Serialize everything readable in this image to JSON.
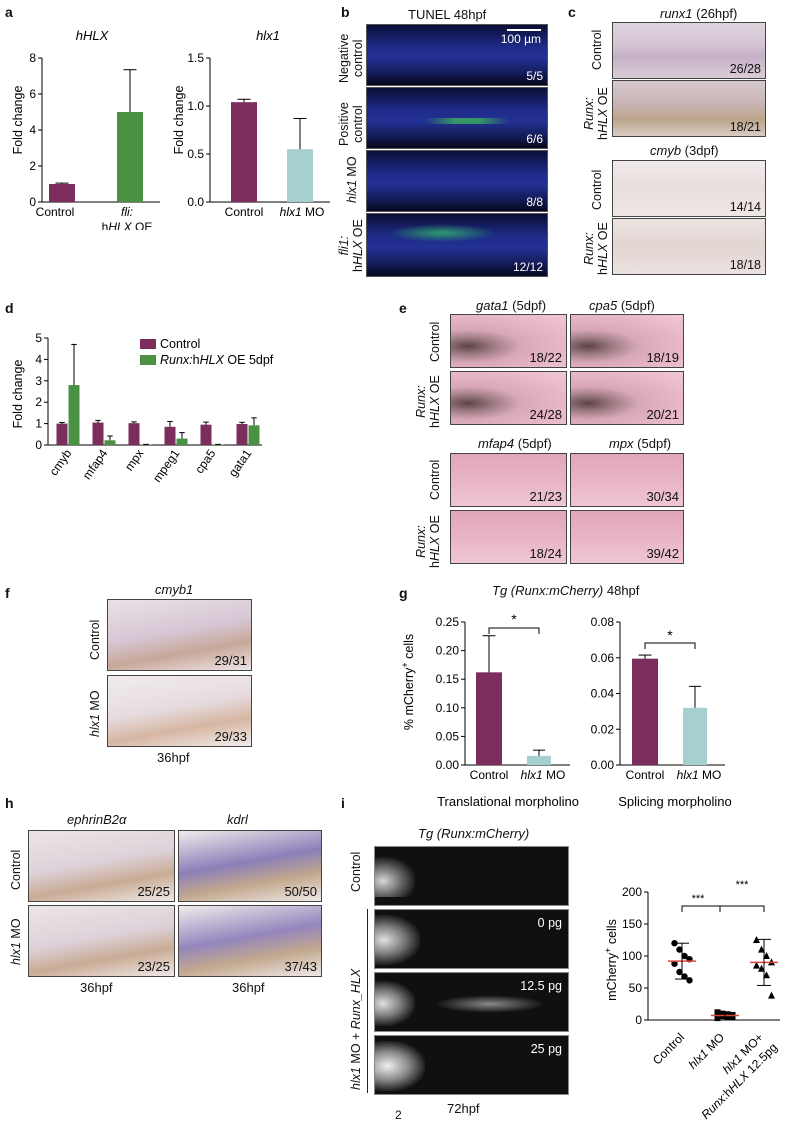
{
  "panels": {
    "a": {
      "letter": "a",
      "chart_left": {
        "title": "hHLX",
        "ylabel": "Fold change",
        "yticks": [
          "0",
          "2",
          "4",
          "6",
          "8"
        ],
        "x1": "Control",
        "x2_line1_it": "fli:",
        "x2_line2_pre": "h",
        "x2_line2_it": "HLX",
        "x2_line2_post": " OE"
      },
      "chart_right": {
        "title": "hlx1",
        "ylabel": "Fold change",
        "yticks": [
          "0.0",
          "0.5",
          "1.0",
          "1.5"
        ],
        "x1": "Control",
        "x2_it": "hlx1",
        "x2_post": " MO"
      }
    },
    "b": {
      "letter": "b",
      "header": "TUNEL  48hpf",
      "scalebar": "100 µm",
      "rows": [
        {
          "label_line1": "Negative",
          "label_line2": "control",
          "count": "5/5"
        },
        {
          "label_line1": "Positive",
          "label_line2": "control",
          "count": "6/6"
        },
        {
          "label_it": "hlx1",
          "label_post": " MO",
          "count": "8/8"
        },
        {
          "label_line1_it": "fli1:",
          "label_line2_pre": "h",
          "label_line2_it": "HLX",
          "label_line2_post": " OE",
          "count": "12/12"
        }
      ]
    },
    "c": {
      "letter": "c",
      "top_header_it": "runx1",
      "top_header_post": " (26hpf)",
      "bottom_header_it": "cmyb",
      "bottom_header_post": " (3dpf)",
      "label_control": "Control",
      "label_oe_line1_it": "Runx:",
      "label_oe_line2_pre": "h",
      "label_oe_line2_it": "HLX",
      "label_oe_line2_post": " OE",
      "counts": [
        "26/28",
        "18/21",
        "14/14",
        "18/18"
      ]
    },
    "d": {
      "letter": "d",
      "legend_control": "Control",
      "legend_oe_it": "Runx:",
      "legend_oe_pre": "h",
      "legend_oe_it2": "HLX",
      "legend_oe_post": " OE 5dpf",
      "ylabel": "Fold change",
      "yticks": [
        "0",
        "1",
        "2",
        "3",
        "4",
        "5"
      ]
    },
    "e": {
      "letter": "e",
      "headers_top": [
        {
          "it": "gata1",
          "post": " (5dpf)"
        },
        {
          "it": "cpa5",
          "post": " (5dpf)"
        }
      ],
      "headers_bottom": [
        {
          "it": "mfap4",
          "post": " (5dpf)"
        },
        {
          "it": "mpx",
          "post": " (5dpf)"
        }
      ],
      "label_control": "Control",
      "label_oe_line1_it": "Runx:",
      "label_oe_line2_pre": "h",
      "label_oe_line2_it": "HLX",
      "label_oe_line2_post": " OE",
      "counts": [
        "18/22",
        "18/19",
        "24/28",
        "20/21",
        "21/23",
        "30/34",
        "18/24",
        "39/42"
      ]
    },
    "f": {
      "letter": "f",
      "header": "cmyb1",
      "label_control": "Control",
      "label_mo_it": "hlx1",
      "label_mo_post": " MO",
      "counts": [
        "29/31",
        "29/33"
      ],
      "footer": "36hpf"
    },
    "g": {
      "letter": "g",
      "title_it": "Tg (Runx:mCherry)",
      "title_post": " 48hpf",
      "ylabel_pre": "% mCherry",
      "ylabel_sup": "+",
      "ylabel_post": " cells",
      "left_yticks": [
        "0.00",
        "0.05",
        "0.10",
        "0.15",
        "0.20",
        "0.25"
      ],
      "right_yticks": [
        "0.00",
        "0.02",
        "0.04",
        "0.06",
        "0.08"
      ],
      "x1": "Control",
      "x2_it": "hlx1",
      "x2_post": " MO",
      "sig": "*",
      "caption_left": "Translational morpholino",
      "caption_right": "Splicing morpholino"
    },
    "h": {
      "letter": "h",
      "headers": [
        {
          "it": "ephrinB2α"
        },
        {
          "it": "kdrl"
        }
      ],
      "label_control": "Control",
      "label_mo_it": "hlx1",
      "label_mo_post": " MO",
      "counts": [
        "25/25",
        "50/50",
        "23/25",
        "37/43"
      ],
      "footers": [
        "36hpf",
        "36hpf"
      ]
    },
    "i": {
      "letter": "i",
      "title": "Tg (Runx:mCherry)",
      "label_control": "Control",
      "label_mo_it": "hlx1",
      "label_mo_mid": " MO + ",
      "label_mo_it2": "Runx_HLX",
      "doses": [
        "0 pg",
        "12.5 pg",
        "25 pg"
      ],
      "footer": "72hpf",
      "ylabel_pre": "mCherry",
      "ylabel_sup": "+",
      "ylabel_post": " cells",
      "yticks": [
        "0",
        "50",
        "100",
        "150",
        "200"
      ],
      "x_labels": [
        {
          "pre": "Control"
        },
        {
          "it": "hlx1",
          "post": " MO"
        },
        {
          "it": "hlx1",
          "post": " MO+"
        }
      ],
      "x_label3_line2_it": "Runx",
      "x_label3_line2_post": ":h",
      "x_label3_line2_it2": "HLX",
      "x_label3_line2_post2": " 12.5pg",
      "sig": "***"
    },
    "page_number": "2"
  },
  "chart_data": [
    {
      "type": "bar",
      "title": "hHLX",
      "ylabel": "Fold change",
      "categories": [
        "Control",
        "fli:hHLX OE"
      ],
      "values": [
        1.0,
        5.0
      ],
      "errors": [
        0.05,
        2.35
      ],
      "ylim": [
        0,
        8
      ],
      "colors": [
        "#7b2d5e",
        "#4a9144"
      ]
    },
    {
      "type": "bar",
      "title": "hlx1",
      "ylabel": "Fold change",
      "categories": [
        "Control",
        "hlx1 MO"
      ],
      "values": [
        1.04,
        0.55
      ],
      "errors": [
        0.03,
        0.32
      ],
      "ylim": [
        0,
        1.5
      ],
      "colors": [
        "#7b2d5e",
        "#a6d0cf"
      ]
    },
    {
      "type": "bar",
      "ylabel": "Fold change",
      "categories": [
        "cmyb",
        "mfap4",
        "mpx",
        "mpeg1",
        "cpa5",
        "gata1"
      ],
      "ylim": [
        0,
        5
      ],
      "series": [
        {
          "name": "Control",
          "color": "#7b2d5e",
          "values": [
            1.0,
            1.05,
            1.02,
            0.85,
            0.95,
            0.98
          ],
          "errors": [
            0.05,
            0.1,
            0.06,
            0.25,
            0.12,
            0.08
          ]
        },
        {
          "name": "Runx:hHLX OE 5dpf",
          "color": "#4a9144",
          "values": [
            2.8,
            0.22,
            0.02,
            0.3,
            0.02,
            0.92
          ],
          "errors": [
            1.9,
            0.2,
            0.01,
            0.28,
            0.01,
            0.35
          ]
        }
      ]
    },
    {
      "type": "bar",
      "ylabel": "% mCherry+ cells",
      "caption": "Translational morpholino",
      "categories": [
        "Control",
        "hlx1 MO"
      ],
      "values": [
        0.162,
        0.016
      ],
      "errors": [
        0.064,
        0.01
      ],
      "ylim": [
        0,
        0.25
      ],
      "colors": [
        "#7b2d5e",
        "#a6d0cf"
      ],
      "significance": "*"
    },
    {
      "type": "bar",
      "ylabel": "% mCherry+ cells",
      "caption": "Splicing morpholino",
      "categories": [
        "Control",
        "hlx1 MO"
      ],
      "values": [
        0.0595,
        0.032
      ],
      "errors": [
        0.002,
        0.012
      ],
      "ylim": [
        0,
        0.08
      ],
      "colors": [
        "#7b2d5e",
        "#a6d0cf"
      ],
      "significance": "*"
    },
    {
      "type": "scatter",
      "ylabel": "mCherry+ cells",
      "categories": [
        "Control",
        "hlx1 MO",
        "hlx1 MO+ Runx:hHLX 12.5pg"
      ],
      "ylim": [
        0,
        200
      ],
      "groups": [
        {
          "values": [
            120,
            110,
            100,
            95,
            88,
            75,
            68,
            62
          ],
          "mean": 92,
          "sd": 28
        },
        {
          "values": [
            12,
            10,
            9,
            8,
            7,
            6,
            5,
            4,
            3
          ],
          "mean": 7,
          "sd": 4
        },
        {
          "values": [
            125,
            110,
            100,
            90,
            85,
            80,
            70,
            38
          ],
          "mean": 90,
          "sd": 36
        }
      ],
      "significance": [
        "***",
        "***"
      ]
    }
  ]
}
